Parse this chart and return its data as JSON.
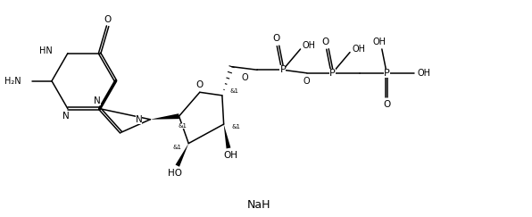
{
  "bg": "#ffffff",
  "lc": "#000000",
  "figw": 5.96,
  "figh": 2.43,
  "dpi": 100,
  "xlim": [
    0,
    11.92
  ],
  "ylim": [
    0,
    4.86
  ],
  "NaH_x": 5.8,
  "NaH_y": 0.25,
  "NaH_fs": 9
}
